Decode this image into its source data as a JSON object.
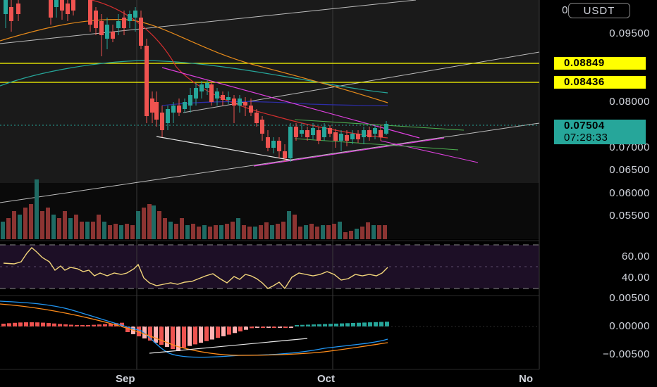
{
  "pair_currency": "USDT",
  "price_axis": {
    "main": [
      "0.09500",
      "0.08000",
      "0.07000",
      "0.06500",
      "0.06000",
      "0.05500"
    ],
    "top_partial": "0"
  },
  "price_tags": {
    "level_high": {
      "value": "0.08849",
      "color": "#ffff00"
    },
    "level_low": {
      "value": "0.08436",
      "color": "#ffff00"
    },
    "current": {
      "value": "0.07504",
      "countdown": "07:28:33",
      "color": "#26a69a"
    }
  },
  "rsi_axis": [
    "60.00",
    "40.00"
  ],
  "macd_axis": [
    "0.00500",
    "0.00000",
    "−0.00500"
  ],
  "time_axis": [
    "Sep",
    "Oct",
    "No"
  ],
  "colors": {
    "up": "#26a69a",
    "down": "#ef5350",
    "rsi_line": "#f2d57a",
    "rsi_band": "#2a1a3a",
    "trend_magenta": "#e040e0",
    "trend_green": "#4caf50",
    "ma_red": "#d32f2f",
    "ma_orange": "#e68a1a",
    "ma_teal": "#26a69a",
    "ma_blue": "#2d2da8",
    "macd_line": "#2196f3",
    "signal_line": "#ff8c1a",
    "level_line": "#ffff00"
  }
}
